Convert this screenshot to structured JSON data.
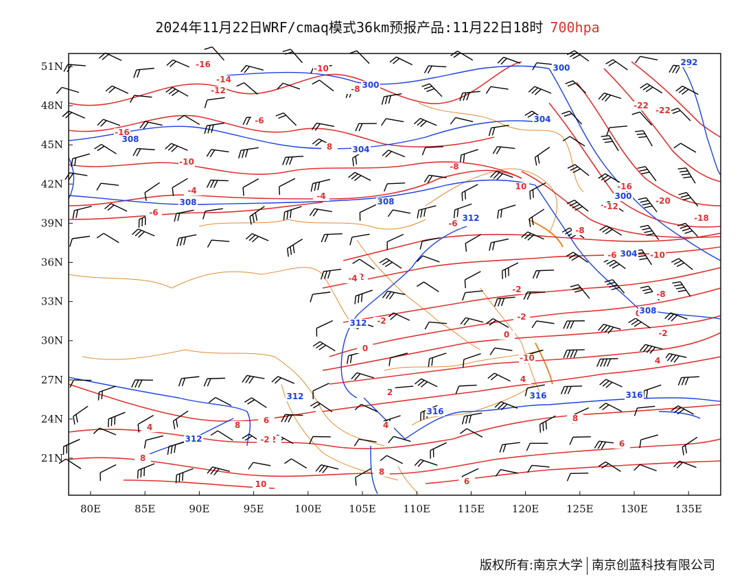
{
  "title": {
    "main": "2024年11月22日WRF/cmaq模式36km预报产品:11月22日18时",
    "level": "700hpa"
  },
  "colors": {
    "temperature": "#e03030",
    "height": "#1c3fe0",
    "border": "#e08a30",
    "barb": "#000000"
  },
  "axes": {
    "lon_ticks": [
      "80E",
      "85E",
      "90E",
      "95E",
      "100E",
      "105E",
      "110E",
      "115E",
      "120E",
      "125E",
      "130E",
      "135E"
    ],
    "lat_ticks": [
      "51N",
      "48N",
      "45N",
      "42N",
      "39N",
      "36N",
      "33N",
      "30N",
      "27N",
      "24N",
      "21N"
    ]
  },
  "temperature_labels": [
    "-16",
    "-14",
    "-12",
    "-10",
    "-8",
    "-16",
    "-10",
    "-8",
    "-6",
    "-6",
    "-4",
    "-2",
    "-2",
    "0",
    "0",
    "-2",
    "-6",
    "-8",
    "-10",
    "-12",
    "-16",
    "-20",
    "-18",
    "-22",
    "-22",
    "-8",
    "-6",
    "-10",
    "-4",
    "-2",
    "-2",
    "0",
    "-2",
    "2",
    "4",
    "4",
    "4",
    "2",
    "4",
    "6",
    "8",
    "10",
    "8",
    "6",
    "6",
    "8",
    "10",
    "8",
    "8",
    "-8",
    "-10",
    "-4",
    "-2"
  ],
  "height_labels": [
    "308",
    "300",
    "304",
    "308",
    "308",
    "312",
    "312",
    "312",
    "304",
    "300",
    "300",
    "292",
    "316",
    "316",
    "312",
    "316",
    "308",
    "304"
  ],
  "footer": {
    "left": "版权所有:南京大学",
    "right": "南京创蓝科技有限公司"
  }
}
